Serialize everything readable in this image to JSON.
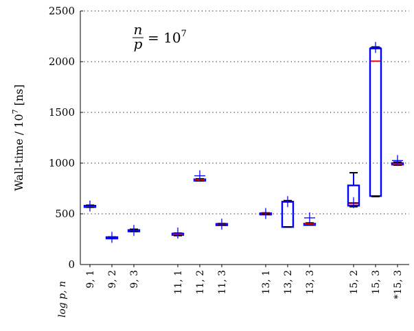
{
  "chart_data": {
    "type": "box",
    "ylabel": "Wall-time / 10^7 [ns]",
    "ylabel_parts": {
      "pre": "Wall-time / 10",
      "sup": "7",
      "post": " [ns]"
    },
    "xlabel": "log p, n",
    "annotation": {
      "num": "n",
      "den": "p",
      "rhs": "= 10",
      "sup": "7"
    },
    "ylim": [
      0,
      2500
    ],
    "yticks": [
      0,
      500,
      1000,
      1500,
      2000,
      2500
    ],
    "grid": "horizontal dotted",
    "series": [
      {
        "label": "9, 1",
        "min": 565,
        "q1": 570,
        "median": 575,
        "q3": 580,
        "max": 585,
        "mean": 577
      },
      {
        "label": "9, 2",
        "min": 263,
        "q1": 266,
        "median": 268,
        "q3": 270,
        "max": 272,
        "mean": 268
      },
      {
        "label": "9, 3",
        "min": 325,
        "q1": 330,
        "median": 335,
        "q3": 340,
        "max": 348,
        "mean": 336
      },
      {
        "label": "11, 1",
        "min": 285,
        "q1": 295,
        "median": 300,
        "q3": 305,
        "max": 310,
        "mean": 310
      },
      {
        "label": "11, 2",
        "min": 825,
        "q1": 830,
        "median": 835,
        "q3": 840,
        "max": 845,
        "mean": 875
      },
      {
        "label": "11, 3",
        "min": 393,
        "q1": 396,
        "median": 398,
        "q3": 401,
        "max": 404,
        "mean": 398
      },
      {
        "label": "13, 1",
        "min": 497,
        "q1": 500,
        "median": 503,
        "q3": 506,
        "max": 509,
        "mean": 503
      },
      {
        "label": "13, 2",
        "min": 370,
        "q1": 370,
        "median": 615,
        "q3": 620,
        "max": 630,
        "mean": 620
      },
      {
        "label": "13, 3",
        "min": 395,
        "q1": 398,
        "median": 400,
        "q3": 403,
        "max": 410,
        "mean": 460
      },
      {
        "label": "15, 2",
        "min": 570,
        "q1": 580,
        "median": 600,
        "q3": 780,
        "max": 905,
        "mean": 610
      },
      {
        "label": "15, 3",
        "min": 670,
        "q1": 675,
        "median": 2005,
        "q3": 2130,
        "max": 2145,
        "mean": 2140
      },
      {
        "label": "*15, 3",
        "min": 980,
        "q1": 985,
        "median": 990,
        "q3": 1000,
        "max": 1010,
        "mean": 1025
      }
    ],
    "colors": {
      "box": "#0000ff",
      "median": "#ff0000",
      "mean": "#0000ff",
      "whisker_cap": "#000000",
      "grid": "#000000"
    }
  }
}
